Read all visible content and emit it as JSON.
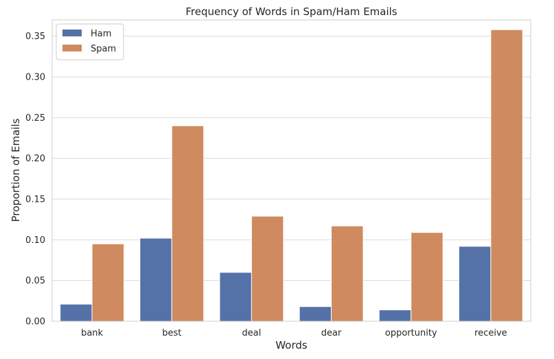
{
  "chart_data": {
    "type": "bar",
    "title": "Frequency of Words in Spam/Ham Emails",
    "xlabel": "Words",
    "ylabel": "Proportion of Emails",
    "categories": [
      "bank",
      "best",
      "deal",
      "dear",
      "opportunity",
      "receive"
    ],
    "series": [
      {
        "name": "Ham",
        "color": "#5572a8",
        "values": [
          0.021,
          0.102,
          0.06,
          0.018,
          0.014,
          0.092
        ]
      },
      {
        "name": "Spam",
        "color": "#cf8a5f",
        "values": [
          0.095,
          0.24,
          0.129,
          0.117,
          0.109,
          0.358
        ]
      }
    ],
    "ylim": [
      0,
      0.37
    ],
    "yticks": [
      "0.00",
      "0.05",
      "0.10",
      "0.15",
      "0.20",
      "0.25",
      "0.30",
      "0.35"
    ],
    "grid": "y",
    "legend": "top-left",
    "background": "#ffffff",
    "gridColor": "#d9d9d9",
    "spineColor": "#cccccc"
  }
}
